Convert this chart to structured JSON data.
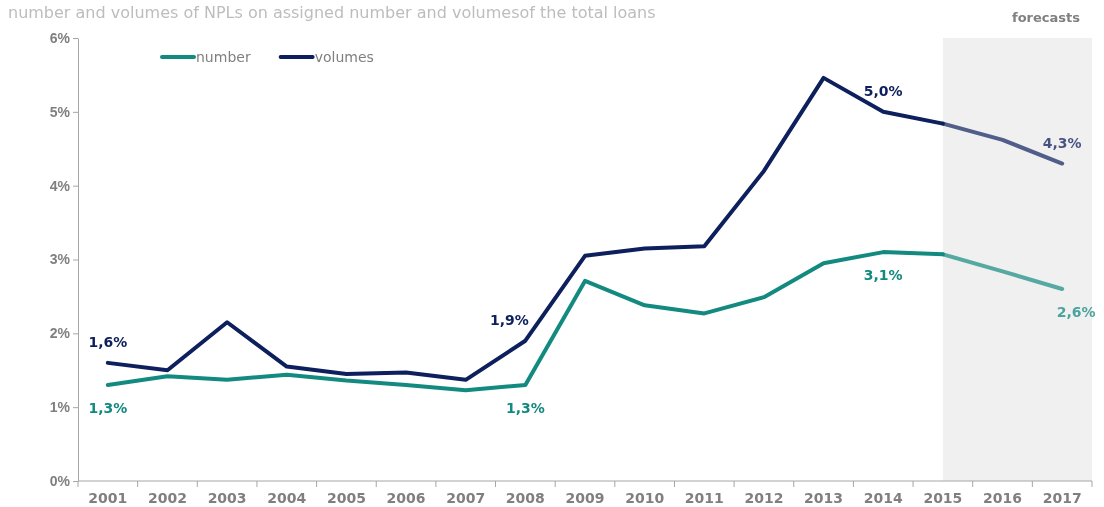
{
  "chart_data": {
    "type": "line",
    "title": "number and volumes of  NPLs on assigned number and volumesof the total loans",
    "categories": [
      "2001",
      "2002",
      "2003",
      "2004",
      "2005",
      "2006",
      "2007",
      "2008",
      "2009",
      "2010",
      "2011",
      "2012",
      "2013",
      "2014",
      "2015",
      "2016",
      "2017"
    ],
    "series": [
      {
        "name": "number",
        "color": "#138a80",
        "values": [
          1.3,
          1.42,
          1.37,
          1.44,
          1.36,
          1.3,
          1.23,
          1.3,
          2.71,
          2.38,
          2.27,
          2.49,
          2.95,
          3.1,
          3.07,
          2.84,
          2.6
        ],
        "value_labels": [
          "1,3%",
          null,
          null,
          null,
          null,
          null,
          null,
          "1,3%",
          null,
          null,
          null,
          null,
          null,
          "3,1%",
          null,
          null,
          "2,6%"
        ]
      },
      {
        "name": "volumes",
        "color": "#0d1f5c",
        "values": [
          1.6,
          1.5,
          2.15,
          1.55,
          1.45,
          1.47,
          1.37,
          1.9,
          3.05,
          3.15,
          3.18,
          4.2,
          5.46,
          5.0,
          4.84,
          4.62,
          4.3
        ],
        "value_labels": [
          "1,6%",
          null,
          null,
          null,
          null,
          null,
          null,
          "1,9%",
          null,
          null,
          null,
          null,
          null,
          "5,0%",
          null,
          null,
          "4,3%"
        ]
      }
    ],
    "ylim": [
      0,
      6
    ],
    "yticks": [
      {
        "value": 0,
        "label": "0%"
      },
      {
        "value": 1,
        "label": "1%"
      },
      {
        "value": 2,
        "label": "2%"
      },
      {
        "value": 3,
        "label": "3%"
      },
      {
        "value": 4,
        "label": "4%"
      },
      {
        "value": 5,
        "label": "5%"
      },
      {
        "value": 6,
        "label": "6%"
      }
    ],
    "bands": [
      {
        "axis": "x",
        "from": "2015",
        "to": "2017",
        "label": "forecasts",
        "color": "#f0f0f0"
      }
    ],
    "legend": "top left",
    "grid": false,
    "marker": "none",
    "line_style": "solid"
  }
}
